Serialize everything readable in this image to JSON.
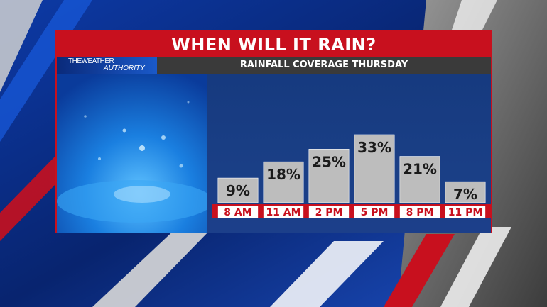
{
  "header": {
    "title": "WHEN WILL IT RAIN?",
    "subtitle": "RAINFALL COVERAGE THURSDAY",
    "brand_line1": "THEWEATHER",
    "brand_line2": "AUTHORITY"
  },
  "colors": {
    "accent": "#c8101e",
    "bar": "#bdbdbd",
    "subtitle_bar": "#3a3a3a"
  },
  "chart_data": {
    "type": "bar",
    "title": "WHEN WILL IT RAIN?",
    "subtitle": "RAINFALL COVERAGE THURSDAY",
    "categories": [
      "8 AM",
      "11 AM",
      "2 PM",
      "5 PM",
      "8 PM",
      "11 PM"
    ],
    "values": [
      9,
      18,
      25,
      33,
      21,
      7
    ],
    "value_labels": [
      "9%",
      "18%",
      "25%",
      "33%",
      "21%",
      "7%"
    ],
    "unit": "%",
    "ylim": [
      0,
      40
    ],
    "grid": false,
    "legend": "none"
  }
}
